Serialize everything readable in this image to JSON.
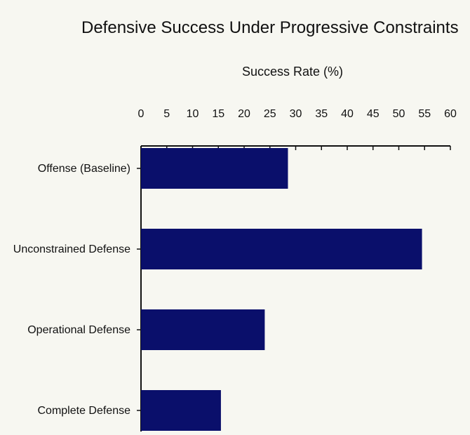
{
  "title": "Defensive Success Under Progressive Constraints",
  "chart_data": {
    "type": "bar",
    "orientation": "horizontal",
    "title": "Defensive Success Under Progressive Constraints",
    "xlabel": "Success Rate (%)",
    "ylabel": "",
    "xlim": [
      0,
      60
    ],
    "xticks": [
      0,
      5,
      10,
      15,
      20,
      25,
      30,
      35,
      40,
      45,
      50,
      55,
      60
    ],
    "x_axis_position": "top",
    "grid": false,
    "categories": [
      "Offense (Baseline)",
      "Unconstrained Defense",
      "Operational Defense",
      "Complete Defense"
    ],
    "values": [
      28.5,
      54.5,
      24,
      15.5
    ],
    "colors": {
      "bar": "#0a0f6b",
      "axis": "#111111",
      "background": "#f7f7f1"
    }
  }
}
